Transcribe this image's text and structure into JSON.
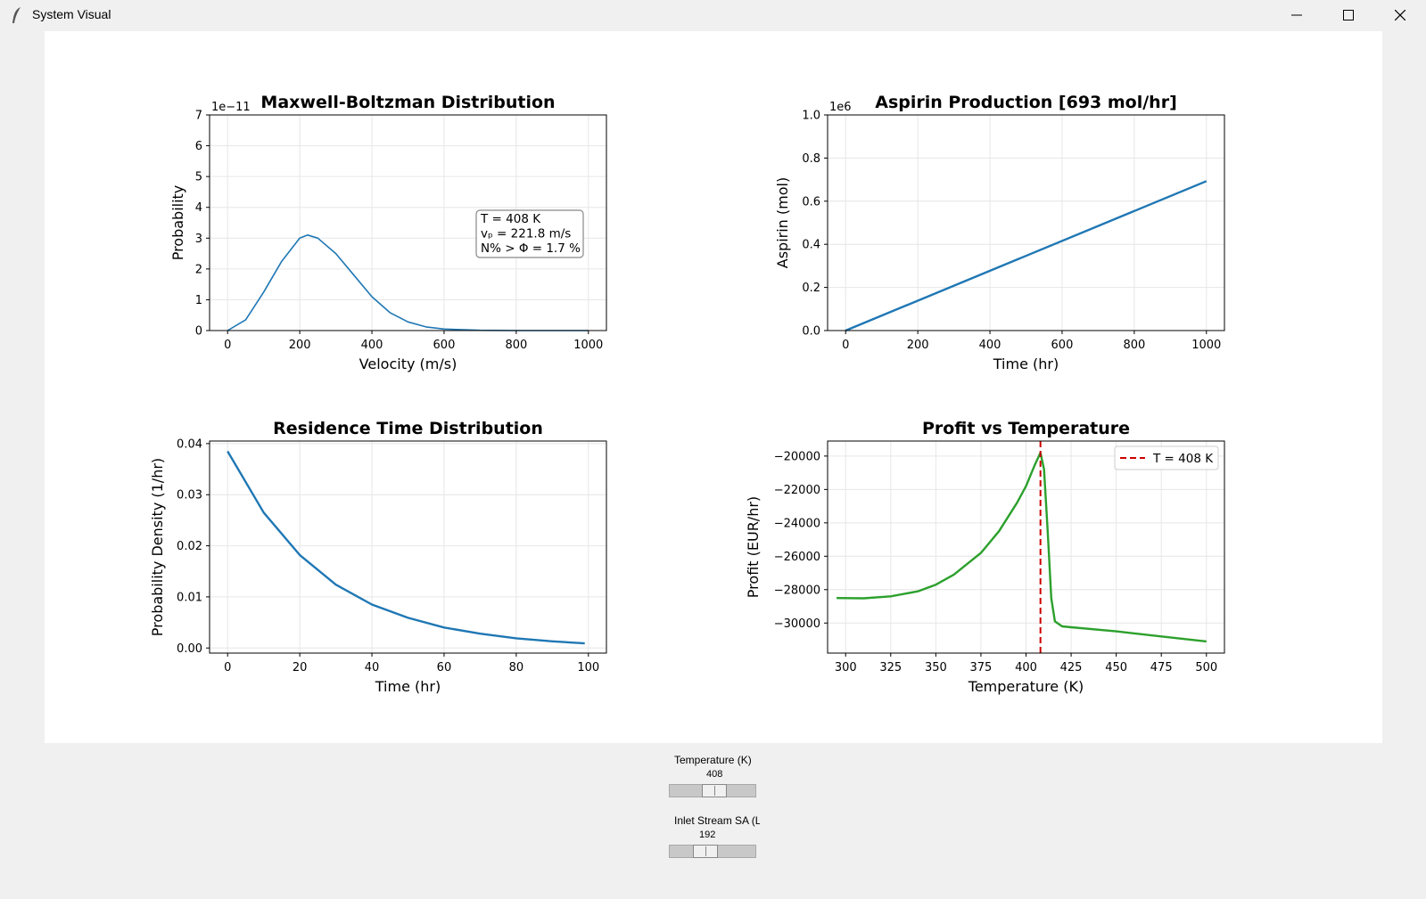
{
  "window": {
    "title": "System Visual",
    "icon": "feather-icon",
    "buttons": [
      "minimize-icon",
      "maximize-icon",
      "close-icon"
    ]
  },
  "charts": [
    {
      "title": "Maxwell-Boltzman Distribution",
      "xlabel": "Velocity (m/s)",
      "ylabel": "Probability",
      "offset_text": "1e−11",
      "xticks": [
        "0",
        "200",
        "400",
        "600",
        "800",
        "1000"
      ],
      "yticks": [
        "0",
        "1",
        "2",
        "3",
        "4",
        "5",
        "6",
        "7"
      ],
      "annotation": [
        "T = 408 K",
        "vₚ = 221.8 m/s",
        "N% > Φ = 1.7 %"
      ]
    },
    {
      "title": "Aspirin Production [693 mol/hr]",
      "xlabel": "Time (hr)",
      "ylabel": "Aspirin (mol)",
      "offset_text": "1e6",
      "xticks": [
        "0",
        "200",
        "400",
        "600",
        "800",
        "1000"
      ],
      "yticks": [
        "0.0",
        "0.2",
        "0.4",
        "0.6",
        "0.8",
        "1.0"
      ]
    },
    {
      "title": "Residence Time Distribution",
      "xlabel": "Time (hr)",
      "ylabel": "Probability Density (1/hr)",
      "xticks": [
        "0",
        "20",
        "40",
        "60",
        "80",
        "100"
      ],
      "yticks": [
        "0.00",
        "0.01",
        "0.02",
        "0.03",
        "0.04"
      ]
    },
    {
      "title": "Profit vs Temperature",
      "xlabel": "Temperature (K)",
      "ylabel": "Profit (EUR/hr)",
      "legend": "T = 408 K",
      "xticks": [
        "300",
        "325",
        "350",
        "375",
        "400",
        "425",
        "450",
        "475",
        "500"
      ],
      "yticks": [
        "−20000",
        "−22000",
        "−24000",
        "−26000",
        "−28000",
        "−30000"
      ]
    }
  ],
  "chart_data": [
    {
      "type": "line",
      "title": "Maxwell-Boltzman Distribution",
      "xlabel": "Velocity (m/s)",
      "ylabel": "Probability",
      "xlim": [
        -50,
        1050
      ],
      "ylim": [
        0,
        7e-11
      ],
      "grid": true,
      "series": [
        {
          "color": "#1f77b4",
          "x": [
            0,
            50,
            100,
            150,
            200,
            221.8,
            250,
            300,
            350,
            400,
            450,
            500,
            550,
            600,
            700,
            800,
            900,
            1000
          ],
          "y": [
            0,
            3.5e-12,
            1.25e-11,
            2.25e-11,
            3e-11,
            3.1e-11,
            3e-11,
            2.5e-11,
            1.8e-11,
            1.1e-11,
            5.8e-12,
            2.8e-12,
            1.2e-12,
            5e-13,
            1e-13,
            1e-14,
            0,
            0
          ]
        }
      ]
    },
    {
      "type": "line",
      "title": "Aspirin Production [693 mol/hr]",
      "xlabel": "Time (hr)",
      "ylabel": "Aspirin (mol)",
      "xlim": [
        -50,
        1050
      ],
      "ylim": [
        0,
        1000000
      ],
      "grid": true,
      "series": [
        {
          "color": "#1f77b4",
          "x": [
            0,
            1000
          ],
          "y": [
            0,
            693000
          ]
        }
      ]
    },
    {
      "type": "line",
      "title": "Residence Time Distribution",
      "xlabel": "Time (hr)",
      "ylabel": "Probability Density (1/hr)",
      "xlim": [
        -5,
        105
      ],
      "ylim": [
        -0.001,
        0.0405
      ],
      "grid": true,
      "series": [
        {
          "color": "#1f77b4",
          "x": [
            0,
            10,
            20,
            30,
            40,
            50,
            60,
            70,
            80,
            90,
            99
          ],
          "y": [
            0.0385,
            0.0265,
            0.0182,
            0.0124,
            0.0085,
            0.0059,
            0.004,
            0.0028,
            0.0019,
            0.0013,
            0.0009
          ]
        }
      ]
    },
    {
      "type": "line",
      "title": "Profit vs Temperature",
      "xlabel": "Temperature (K)",
      "ylabel": "Profit (EUR/hr)",
      "xlim": [
        290,
        510
      ],
      "ylim": [
        -31800,
        -19100
      ],
      "grid": true,
      "legend_position": "top-right",
      "series": [
        {
          "color": "#2ca02c",
          "x": [
            295,
            310,
            325,
            340,
            350,
            360,
            375,
            385,
            395,
            400,
            405,
            408,
            410,
            412,
            414,
            416,
            420,
            425,
            450,
            475,
            500
          ],
          "y": [
            -28500,
            -28520,
            -28400,
            -28100,
            -27700,
            -27100,
            -25800,
            -24500,
            -22800,
            -21800,
            -20500,
            -19800,
            -20800,
            -24500,
            -28500,
            -29900,
            -30200,
            -30250,
            -30500,
            -30800,
            -31100
          ]
        },
        {
          "name": "T = 408 K",
          "color": "#cc0000",
          "dashed": true,
          "vline": 408
        }
      ]
    }
  ],
  "controls": {
    "temperature": {
      "label": "Temperature (K)",
      "value": "408",
      "fraction": 0.53
    },
    "inlet": {
      "label": "Inlet Stream SA (L/",
      "value": "192",
      "fraction": 0.38
    }
  }
}
